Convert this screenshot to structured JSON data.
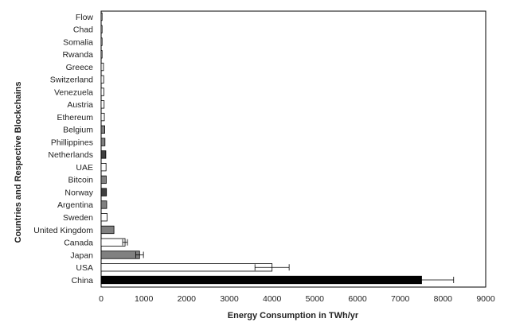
{
  "chart_data": {
    "type": "bar",
    "orientation": "horizontal",
    "xlabel": "Energy Consumption in TWh/yr",
    "ylabel": "Countries and Respective Blockchains",
    "xlim": [
      0,
      9000
    ],
    "xticks": [
      0,
      1000,
      2000,
      3000,
      4000,
      5000,
      6000,
      7000,
      8000,
      9000
    ],
    "grid": false,
    "legend": "none",
    "categories": [
      "China",
      "USA",
      "Japan",
      "Canada",
      "United Kingdom",
      "Sweden",
      "Argentina",
      "Norway",
      "Bitcoin",
      "UAE",
      "Netherlands",
      "Phillippines",
      "Belgium",
      "Ethereum",
      "Austria",
      "Venezuela",
      "Switzerland",
      "Greece",
      "Rwanda",
      "Somalia",
      "Chad",
      "Flow"
    ],
    "values": [
      7500,
      4000,
      900,
      560,
      300,
      140,
      130,
      125,
      120,
      115,
      110,
      90,
      85,
      75,
      70,
      65,
      60,
      55,
      3,
      3,
      2,
      1
    ],
    "errors": [
      750,
      400,
      90,
      56,
      0,
      0,
      0,
      0,
      0,
      0,
      0,
      0,
      0,
      0,
      0,
      0,
      0,
      0,
      0,
      0,
      0,
      0
    ],
    "colors": [
      "#000000",
      "#ffffff",
      "#808080",
      "#ffffff",
      "#808080",
      "#ffffff",
      "#808080",
      "#404040",
      "#808080",
      "#ffffff",
      "#404040",
      "#808080",
      "#808080",
      "#ffffff",
      "#ffffff",
      "#ffffff",
      "#ffffff",
      "#ffffff",
      "#ffffff",
      "#ffffff",
      "#ffffff",
      "#ffffff"
    ]
  }
}
